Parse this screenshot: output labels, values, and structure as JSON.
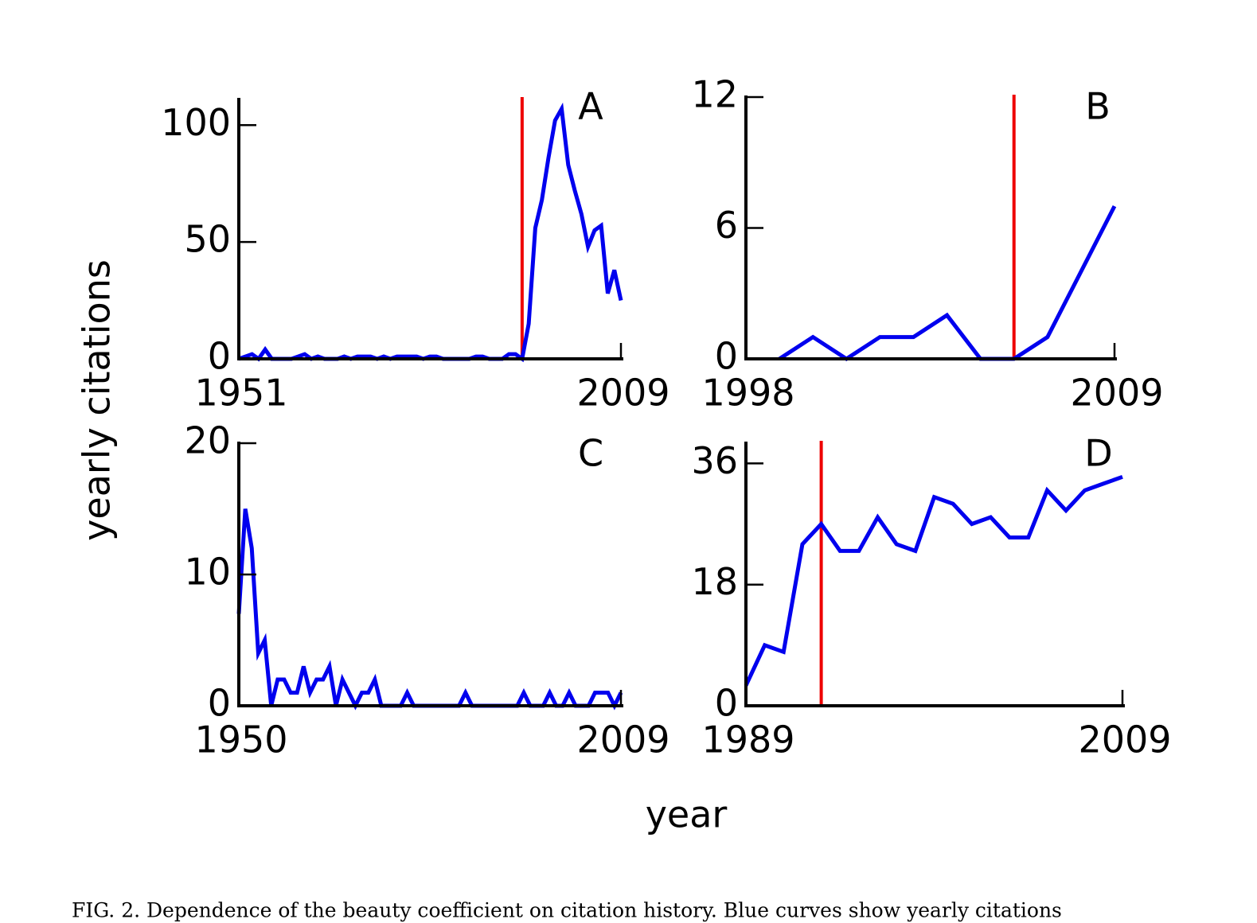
{
  "figure": {
    "xlabel": "year",
    "ylabel": "yearly citations",
    "caption": "FIG. 2. Dependence of the beauty coefficient on citation history. Blue curves show yearly citations"
  },
  "chart_data": [
    {
      "type": "line",
      "panel": "A",
      "xlim": [
        1951,
        2009
      ],
      "xticks": [
        1951,
        2009
      ],
      "ylim": [
        0,
        111
      ],
      "yticks": [
        0,
        50,
        100
      ],
      "vlines": [
        {
          "x": 1994,
          "color": "#ee0000"
        }
      ],
      "series": [
        {
          "color": "#0000ee",
          "x": [
            1951,
            1952,
            1953,
            1954,
            1955,
            1956,
            1957,
            1958,
            1959,
            1960,
            1961,
            1962,
            1963,
            1964,
            1965,
            1966,
            1967,
            1968,
            1969,
            1970,
            1971,
            1972,
            1973,
            1974,
            1975,
            1976,
            1977,
            1978,
            1979,
            1980,
            1981,
            1982,
            1983,
            1984,
            1985,
            1986,
            1987,
            1988,
            1989,
            1990,
            1991,
            1992,
            1993,
            1994,
            1995,
            1996,
            1997,
            1998,
            1999,
            2000,
            2001,
            2002,
            2003,
            2004,
            2005,
            2006,
            2007,
            2008,
            2009
          ],
          "values": [
            0,
            1,
            2,
            0,
            4,
            0,
            0,
            0,
            0,
            1,
            2,
            0,
            1,
            0,
            0,
            0,
            1,
            0,
            1,
            1,
            1,
            0,
            1,
            0,
            1,
            1,
            1,
            1,
            0,
            1,
            1,
            0,
            0,
            0,
            0,
            0,
            1,
            1,
            0,
            0,
            0,
            2,
            2,
            0,
            15,
            56,
            68,
            86,
            102,
            107,
            83,
            72,
            62,
            48,
            55,
            57,
            28,
            38,
            25
          ]
        }
      ]
    },
    {
      "type": "line",
      "panel": "B",
      "xlim": [
        1998,
        2009
      ],
      "xticks": [
        1998,
        2009
      ],
      "ylim": [
        0,
        12
      ],
      "yticks": [
        0,
        6,
        12
      ],
      "vlines": [
        {
          "x": 2006,
          "color": "#ee0000"
        }
      ],
      "series": [
        {
          "color": "#0000ee",
          "x": [
            1999,
            2000,
            2001,
            2002,
            2003,
            2004,
            2005,
            2006,
            2007,
            2008,
            2009
          ],
          "values": [
            0,
            1,
            0,
            1,
            1,
            2,
            0,
            0,
            1,
            4,
            7
          ]
        }
      ]
    },
    {
      "type": "line",
      "panel": "C",
      "xlim": [
        1950,
        2009
      ],
      "xticks": [
        1950,
        2009
      ],
      "ylim": [
        0,
        20
      ],
      "yticks": [
        0,
        10,
        20
      ],
      "vlines": [],
      "series": [
        {
          "color": "#0000ee",
          "x": [
            1950,
            1951,
            1952,
            1953,
            1954,
            1955,
            1956,
            1957,
            1958,
            1959,
            1960,
            1961,
            1962,
            1963,
            1964,
            1965,
            1966,
            1967,
            1968,
            1969,
            1970,
            1971,
            1972,
            1973,
            1974,
            1975,
            1976,
            1977,
            1978,
            1979,
            1980,
            1981,
            1982,
            1983,
            1984,
            1985,
            1986,
            1987,
            1988,
            1989,
            1990,
            1991,
            1992,
            1993,
            1994,
            1995,
            1996,
            1997,
            1998,
            1999,
            2000,
            2001,
            2002,
            2003,
            2004,
            2005,
            2006,
            2007,
            2008,
            2009
          ],
          "values": [
            7,
            15,
            12,
            4,
            5,
            0,
            2,
            2,
            1,
            1,
            3,
            1,
            2,
            2,
            3,
            0,
            2,
            1,
            0,
            1,
            1,
            2,
            0,
            0,
            0,
            0,
            1,
            0,
            0,
            0,
            0,
            0,
            0,
            0,
            0,
            1,
            0,
            0,
            0,
            0,
            0,
            0,
            0,
            0,
            1,
            0,
            0,
            0,
            1,
            0,
            0,
            1,
            0,
            0,
            0,
            1,
            1,
            1,
            0,
            1
          ]
        }
      ]
    },
    {
      "type": "line",
      "panel": "D",
      "xlim": [
        1989,
        2009
      ],
      "xticks": [
        1989,
        2009
      ],
      "ylim": [
        0,
        39
      ],
      "yticks": [
        0,
        18,
        36
      ],
      "vlines": [
        {
          "x": 1993,
          "color": "#ee0000"
        }
      ],
      "series": [
        {
          "color": "#0000ee",
          "x": [
            1989,
            1990,
            1991,
            1992,
            1993,
            1994,
            1995,
            1996,
            1997,
            1998,
            1999,
            2000,
            2001,
            2002,
            2003,
            2004,
            2005,
            2006,
            2007,
            2008,
            2009
          ],
          "values": [
            3,
            9,
            8,
            24,
            27,
            23,
            23,
            28,
            24,
            23,
            31,
            30,
            27,
            28,
            25,
            25,
            32,
            29,
            32,
            33,
            34
          ]
        }
      ]
    }
  ]
}
